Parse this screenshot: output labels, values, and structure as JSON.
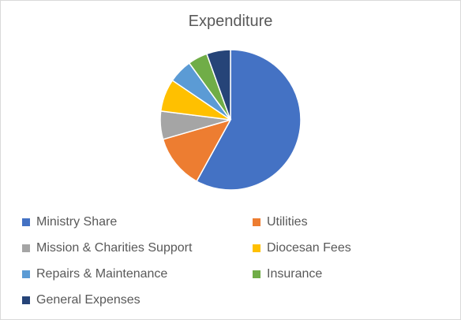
{
  "chart_data": {
    "type": "pie",
    "title": "Expenditure",
    "legend_position": "bottom",
    "slices": [
      {
        "label": "Ministry Share",
        "value": 58.0,
        "color": "#4472C4"
      },
      {
        "label": "Utilities",
        "value": 12.5,
        "color": "#ED7D31"
      },
      {
        "label": "Mission & Charities Support",
        "value": 6.5,
        "color": "#A5A5A5"
      },
      {
        "label": "Diocesan Fees",
        "value": 7.5,
        "color": "#FFC000"
      },
      {
        "label": "Repairs & Maintenance",
        "value": 5.5,
        "color": "#5B9BD5"
      },
      {
        "label": "Insurance",
        "value": 4.5,
        "color": "#70AD47"
      },
      {
        "label": "General Expenses",
        "value": 5.5,
        "color": "#264478"
      }
    ]
  }
}
